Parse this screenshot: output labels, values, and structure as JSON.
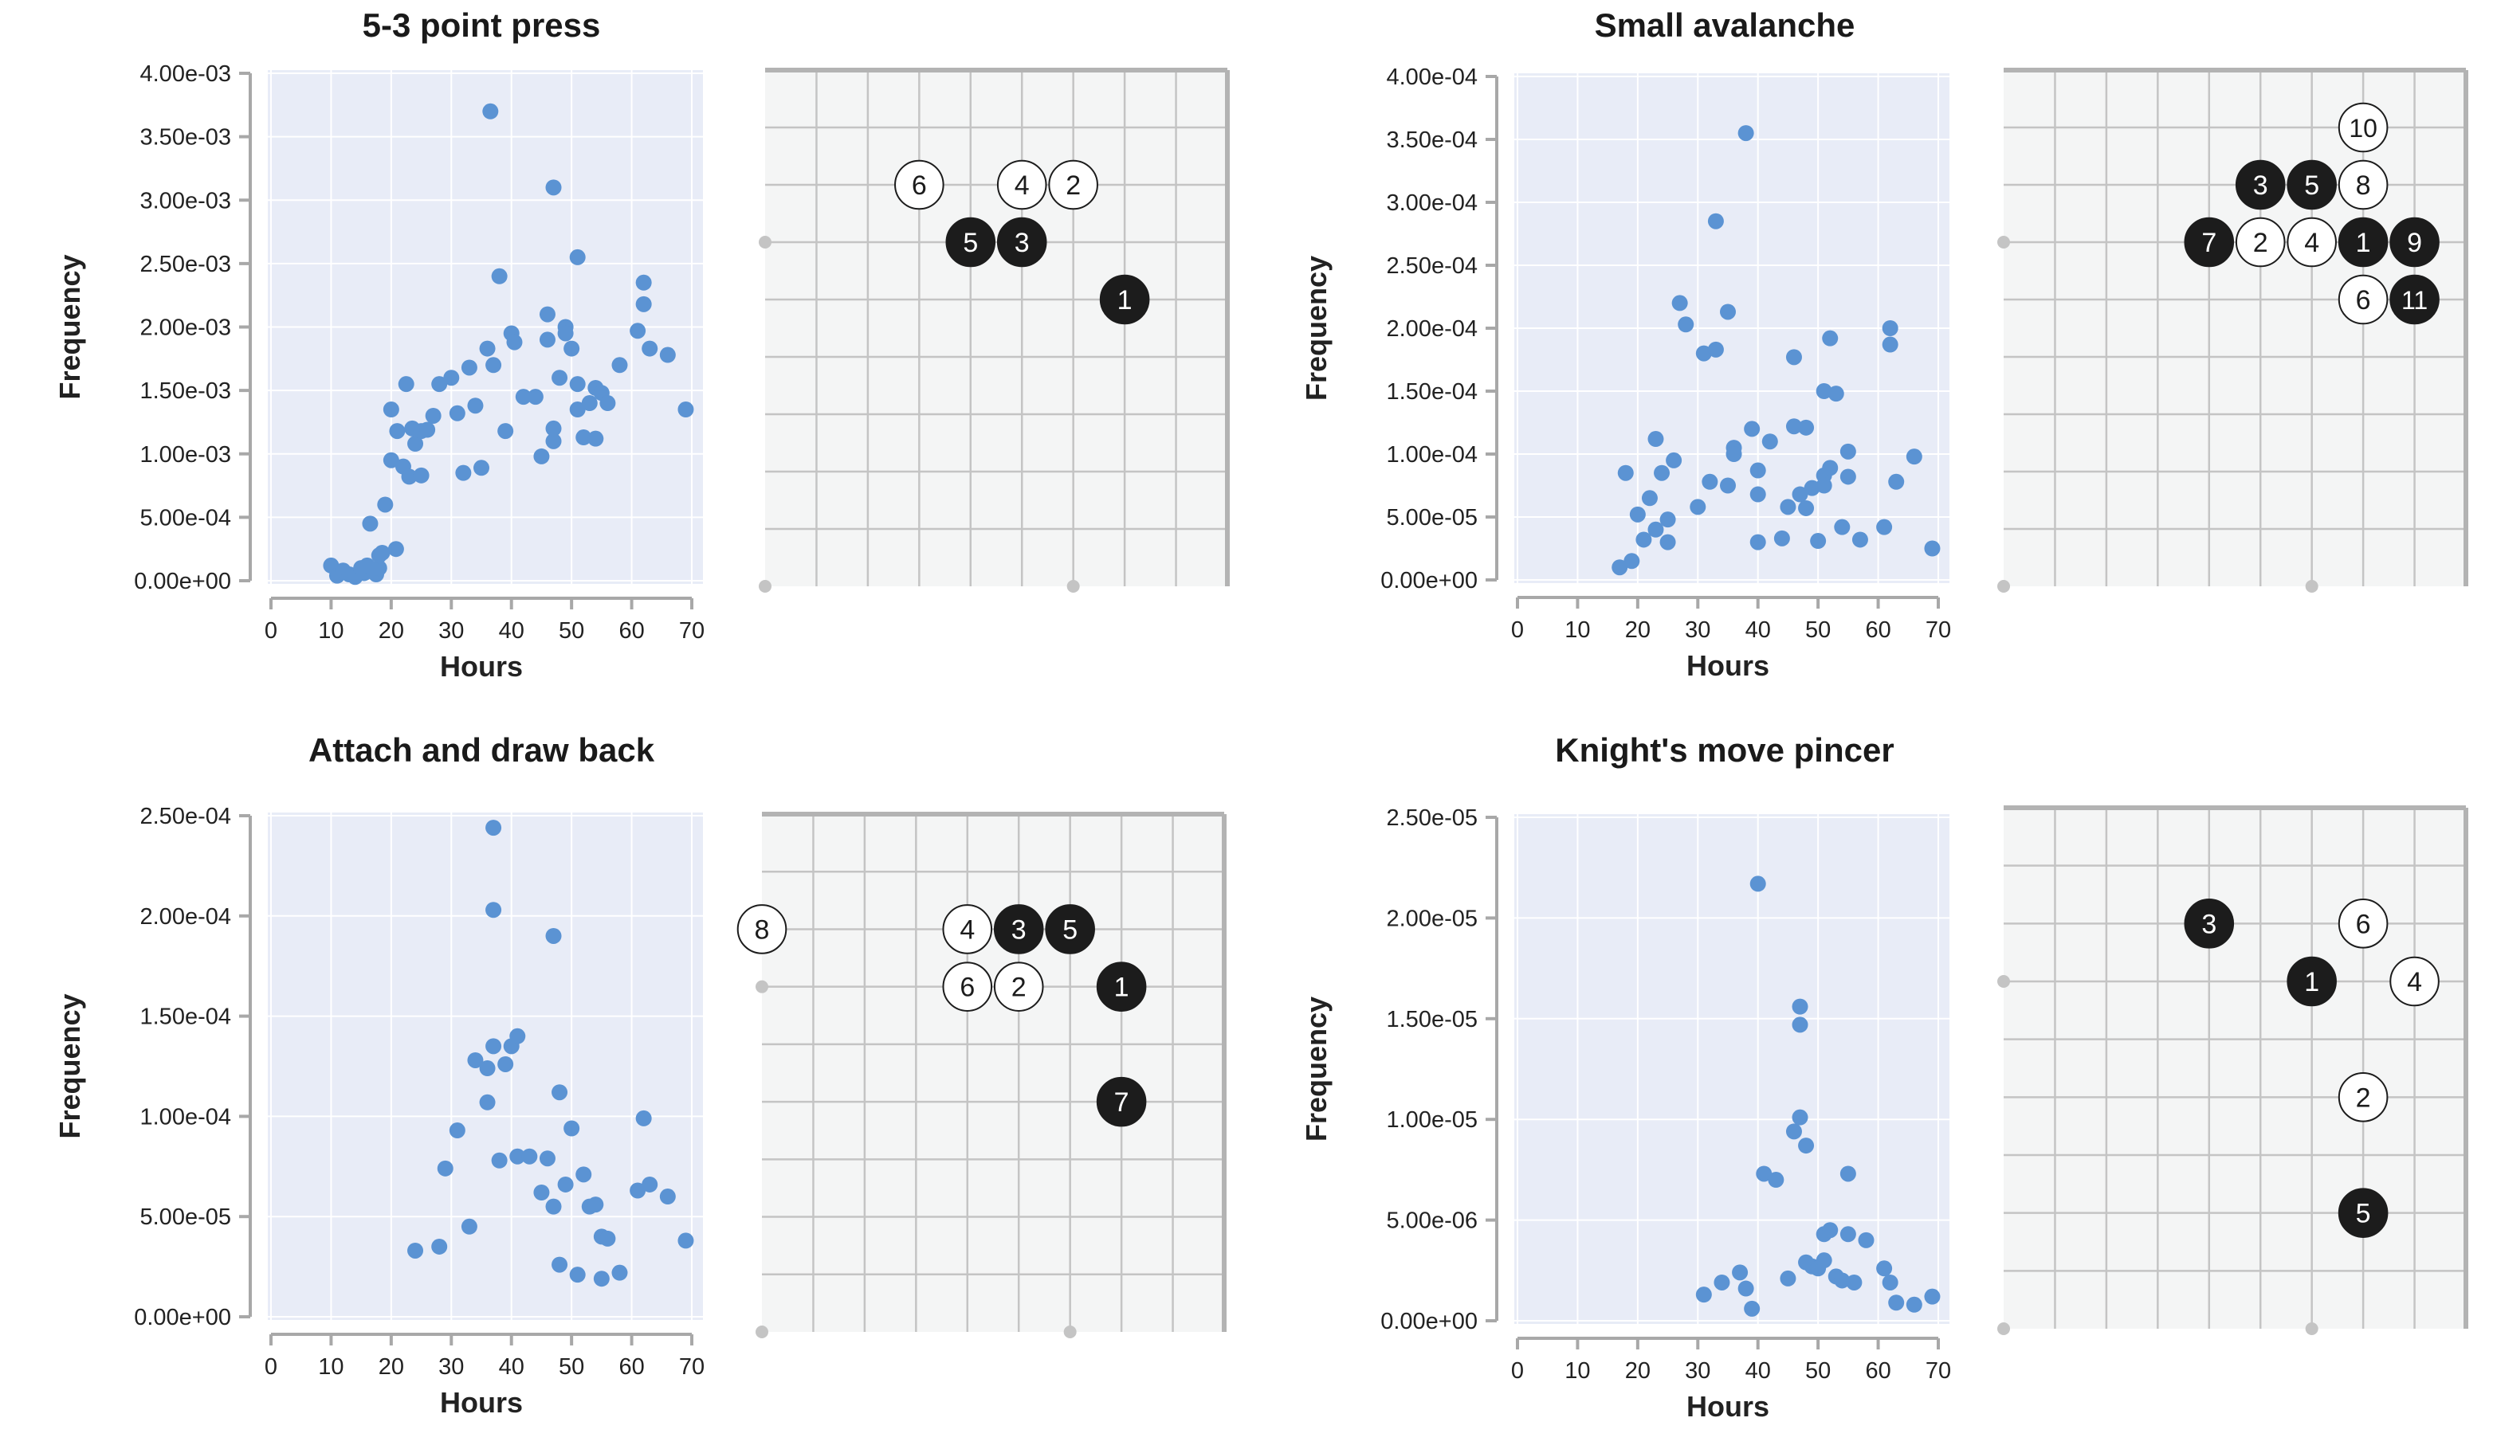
{
  "chart_data": [
    {
      "type": "scatter",
      "title": "5-3 point press",
      "xlabel": "Hours",
      "ylabel": "Frequency",
      "xlim": [
        0,
        70
      ],
      "ylim": [
        0,
        0.004
      ],
      "xticks": [
        "0",
        "10",
        "20",
        "30",
        "40",
        "50",
        "60",
        "70"
      ],
      "yticks": [
        "0.00e+00",
        "5.00e-04",
        "1.00e-03",
        "1.50e-03",
        "2.00e-03",
        "2.50e-03",
        "3.00e-03",
        "3.50e-03",
        "4.00e-03"
      ],
      "grid": true,
      "points": [
        [
          10,
          0.00012
        ],
        [
          11,
          4e-05
        ],
        [
          12,
          8e-05
        ],
        [
          13,
          5e-05
        ],
        [
          14,
          3e-05
        ],
        [
          15,
          0.0001
        ],
        [
          15.5,
          6e-05
        ],
        [
          16,
          0.00012
        ],
        [
          17,
          9e-05
        ],
        [
          17.5,
          5e-05
        ],
        [
          18,
          0.0001
        ],
        [
          18,
          0.0002
        ],
        [
          18.5,
          0.00022
        ],
        [
          16.5,
          0.00045
        ],
        [
          19,
          0.0006
        ],
        [
          20,
          0.00095
        ],
        [
          20,
          0.00135
        ],
        [
          20.8,
          0.00025
        ],
        [
          21,
          0.00118
        ],
        [
          22,
          0.0009
        ],
        [
          22.5,
          0.00155
        ],
        [
          23,
          0.00082
        ],
        [
          23.5,
          0.0012
        ],
        [
          24,
          0.00108
        ],
        [
          25,
          0.00083
        ],
        [
          25,
          0.00118
        ],
        [
          26,
          0.00119
        ],
        [
          27,
          0.0013
        ],
        [
          28,
          0.00155
        ],
        [
          30,
          0.0016
        ],
        [
          31,
          0.00132
        ],
        [
          32,
          0.00085
        ],
        [
          33,
          0.00168
        ],
        [
          34,
          0.00138
        ],
        [
          35,
          0.00089
        ],
        [
          36,
          0.00183
        ],
        [
          36.5,
          0.0037
        ],
        [
          37,
          0.0017
        ],
        [
          38,
          0.0024
        ],
        [
          39,
          0.00118
        ],
        [
          40,
          0.00195
        ],
        [
          40.5,
          0.00188
        ],
        [
          42,
          0.00145
        ],
        [
          44,
          0.00145
        ],
        [
          45,
          0.00098
        ],
        [
          46,
          0.0019
        ],
        [
          46,
          0.0021
        ],
        [
          47,
          0.0011
        ],
        [
          47,
          0.0031
        ],
        [
          47,
          0.0012
        ],
        [
          48,
          0.0016
        ],
        [
          49,
          0.002
        ],
        [
          49,
          0.00195
        ],
        [
          50,
          0.00183
        ],
        [
          51,
          0.00255
        ],
        [
          51,
          0.00155
        ],
        [
          51,
          0.00135
        ],
        [
          52,
          0.00113
        ],
        [
          53,
          0.0014
        ],
        [
          54,
          0.00152
        ],
        [
          54,
          0.00112
        ],
        [
          55,
          0.00148
        ],
        [
          56,
          0.0014
        ],
        [
          58,
          0.0017
        ],
        [
          61,
          0.00197
        ],
        [
          62,
          0.00218
        ],
        [
          62,
          0.00235
        ],
        [
          63,
          0.00183
        ],
        [
          66,
          0.00178
        ],
        [
          69,
          0.00135
        ]
      ]
    },
    {
      "type": "scatter",
      "title": "Small avalanche",
      "xlabel": "Hours",
      "ylabel": "Frequency",
      "xlim": [
        0,
        70
      ],
      "ylim": [
        0,
        0.0004
      ],
      "xticks": [
        "0",
        "10",
        "20",
        "30",
        "40",
        "50",
        "60",
        "70"
      ],
      "yticks": [
        "0.00e+00",
        "5.00e-05",
        "1.00e-04",
        "1.50e-04",
        "2.00e-04",
        "2.50e-04",
        "3.00e-04",
        "3.50e-04",
        "4.00e-04"
      ],
      "grid": true,
      "points": [
        [
          17,
          1e-05
        ],
        [
          18,
          8.5e-05
        ],
        [
          19,
          1.5e-05
        ],
        [
          20,
          5.2e-05
        ],
        [
          21,
          3.2e-05
        ],
        [
          22,
          6.5e-05
        ],
        [
          23,
          0.000112
        ],
        [
          23,
          4e-05
        ],
        [
          24,
          8.5e-05
        ],
        [
          25,
          4.8e-05
        ],
        [
          25,
          3e-05
        ],
        [
          26,
          9.5e-05
        ],
        [
          27,
          0.00022
        ],
        [
          28,
          0.000203
        ],
        [
          30,
          5.8e-05
        ],
        [
          31,
          0.00018
        ],
        [
          32,
          7.8e-05
        ],
        [
          33,
          0.000183
        ],
        [
          33,
          0.000285
        ],
        [
          35,
          0.000213
        ],
        [
          35,
          7.5e-05
        ],
        [
          36,
          0.000105
        ],
        [
          36,
          0.0001
        ],
        [
          38,
          0.000355
        ],
        [
          39,
          0.00012
        ],
        [
          40,
          3e-05
        ],
        [
          40,
          6.8e-05
        ],
        [
          40,
          8.7e-05
        ],
        [
          42,
          0.00011
        ],
        [
          44,
          3.3e-05
        ],
        [
          45,
          5.8e-05
        ],
        [
          46,
          0.000122
        ],
        [
          46,
          0.000177
        ],
        [
          47,
          6.8e-05
        ],
        [
          48,
          5.7e-05
        ],
        [
          48,
          0.000121
        ],
        [
          49,
          7.3e-05
        ],
        [
          50,
          3.1e-05
        ],
        [
          51,
          8.3e-05
        ],
        [
          51,
          0.00015
        ],
        [
          51,
          7.5e-05
        ],
        [
          52,
          0.000192
        ],
        [
          52,
          8.9e-05
        ],
        [
          53,
          0.000148
        ],
        [
          54,
          4.2e-05
        ],
        [
          55,
          0.000102
        ],
        [
          55,
          8.2e-05
        ],
        [
          57,
          3.2e-05
        ],
        [
          61,
          4.2e-05
        ],
        [
          62,
          0.0002
        ],
        [
          62,
          0.000187
        ],
        [
          63,
          7.8e-05
        ],
        [
          66,
          9.8e-05
        ],
        [
          69,
          2.5e-05
        ]
      ]
    },
    {
      "type": "scatter",
      "title": "Attach and draw back",
      "xlabel": "Hours",
      "ylabel": "Frequency",
      "xlim": [
        0,
        70
      ],
      "ylim": [
        0,
        0.00025
      ],
      "xticks": [
        "0",
        "10",
        "20",
        "30",
        "40",
        "50",
        "60",
        "70"
      ],
      "yticks": [
        "0.00e+00",
        "5.00e-05",
        "1.00e-04",
        "1.50e-04",
        "2.00e-04",
        "2.50e-04"
      ],
      "grid": true,
      "points": [
        [
          24,
          3.3e-05
        ],
        [
          28,
          3.5e-05
        ],
        [
          29,
          7.4e-05
        ],
        [
          31,
          9.3e-05
        ],
        [
          33,
          4.5e-05
        ],
        [
          34,
          0.000128
        ],
        [
          36,
          0.000107
        ],
        [
          36,
          0.000124
        ],
        [
          37,
          0.000203
        ],
        [
          37,
          0.000244
        ],
        [
          37,
          0.000135
        ],
        [
          38,
          7.8e-05
        ],
        [
          39,
          0.000126
        ],
        [
          40,
          0.000135
        ],
        [
          41,
          0.00014
        ],
        [
          41,
          8e-05
        ],
        [
          43,
          8e-05
        ],
        [
          45,
          6.2e-05
        ],
        [
          46,
          7.9e-05
        ],
        [
          47,
          5.5e-05
        ],
        [
          47,
          0.00019
        ],
        [
          48,
          0.000112
        ],
        [
          48,
          2.6e-05
        ],
        [
          49,
          6.6e-05
        ],
        [
          50,
          9.4e-05
        ],
        [
          51,
          2.1e-05
        ],
        [
          52,
          7.1e-05
        ],
        [
          53,
          5.5e-05
        ],
        [
          54,
          5.6e-05
        ],
        [
          55,
          4e-05
        ],
        [
          55,
          1.9e-05
        ],
        [
          56,
          3.9e-05
        ],
        [
          58,
          2.2e-05
        ],
        [
          61,
          6.3e-05
        ],
        [
          62,
          9.9e-05
        ],
        [
          63,
          6.6e-05
        ],
        [
          66,
          6e-05
        ],
        [
          69,
          3.8e-05
        ]
      ]
    },
    {
      "type": "scatter",
      "title": "Knight's move pincer",
      "xlabel": "Hours",
      "ylabel": "Frequency",
      "xlim": [
        0,
        70
      ],
      "ylim": [
        0,
        2.5e-05
      ],
      "xticks": [
        "0",
        "10",
        "20",
        "30",
        "40",
        "50",
        "60",
        "70"
      ],
      "yticks": [
        "0.00e+00",
        "5.00e-06",
        "1.00e-05",
        "1.50e-05",
        "2.00e-05",
        "2.50e-05"
      ],
      "grid": true,
      "points": [
        [
          31,
          1.3e-06
        ],
        [
          34,
          1.9e-06
        ],
        [
          37,
          2.4e-06
        ],
        [
          38,
          1.6e-06
        ],
        [
          39,
          6e-07
        ],
        [
          40,
          2.17e-05
        ],
        [
          41,
          7.3e-06
        ],
        [
          43,
          7e-06
        ],
        [
          45,
          2.1e-06
        ],
        [
          46,
          9.4e-06
        ],
        [
          47,
          1.01e-05
        ],
        [
          47,
          1.56e-05
        ],
        [
          47,
          1.47e-05
        ],
        [
          48,
          8.7e-06
        ],
        [
          48,
          2.9e-06
        ],
        [
          49,
          2.7e-06
        ],
        [
          50,
          2.6e-06
        ],
        [
          51,
          3e-06
        ],
        [
          51,
          4.3e-06
        ],
        [
          52,
          4.5e-06
        ],
        [
          53,
          2.2e-06
        ],
        [
          54,
          2e-06
        ],
        [
          55,
          7.3e-06
        ],
        [
          55,
          4.3e-06
        ],
        [
          56,
          1.9e-06
        ],
        [
          58,
          4e-06
        ],
        [
          61,
          2.6e-06
        ],
        [
          62,
          1.9e-06
        ],
        [
          63,
          9e-07
        ],
        [
          66,
          8e-07
        ],
        [
          69,
          1.2e-06
        ]
      ]
    }
  ],
  "boards": [
    {
      "stones": [
        {
          "label": "6",
          "color": "white",
          "col": 3,
          "row": 2
        },
        {
          "label": "4",
          "color": "white",
          "col": 5,
          "row": 2
        },
        {
          "label": "2",
          "color": "white",
          "col": 6,
          "row": 2
        },
        {
          "label": "5",
          "color": "black",
          "col": 4,
          "row": 3
        },
        {
          "label": "3",
          "color": "black",
          "col": 5,
          "row": 3
        },
        {
          "label": "1",
          "color": "black",
          "col": 7,
          "row": 4
        }
      ]
    },
    {
      "stones": [
        {
          "label": "10",
          "color": "white",
          "col": 7,
          "row": 1
        },
        {
          "label": "3",
          "color": "black",
          "col": 5,
          "row": 2
        },
        {
          "label": "5",
          "color": "black",
          "col": 6,
          "row": 2
        },
        {
          "label": "8",
          "color": "white",
          "col": 7,
          "row": 2
        },
        {
          "label": "7",
          "color": "black",
          "col": 4,
          "row": 3
        },
        {
          "label": "2",
          "color": "white",
          "col": 5,
          "row": 3
        },
        {
          "label": "4",
          "color": "white",
          "col": 6,
          "row": 3
        },
        {
          "label": "1",
          "color": "black",
          "col": 7,
          "row": 3
        },
        {
          "label": "9",
          "color": "black",
          "col": 8,
          "row": 3
        },
        {
          "label": "6",
          "color": "white",
          "col": 7,
          "row": 4
        },
        {
          "label": "11",
          "color": "black",
          "col": 8,
          "row": 4
        }
      ]
    },
    {
      "stones": [
        {
          "label": "8",
          "color": "white",
          "col": 0,
          "row": 2
        },
        {
          "label": "4",
          "color": "white",
          "col": 4,
          "row": 2
        },
        {
          "label": "3",
          "color": "black",
          "col": 5,
          "row": 2
        },
        {
          "label": "5",
          "color": "black",
          "col": 6,
          "row": 2
        },
        {
          "label": "6",
          "color": "white",
          "col": 4,
          "row": 3
        },
        {
          "label": "2",
          "color": "white",
          "col": 5,
          "row": 3
        },
        {
          "label": "1",
          "color": "black",
          "col": 7,
          "row": 3
        },
        {
          "label": "7",
          "color": "black",
          "col": 7,
          "row": 5
        }
      ]
    },
    {
      "stones": [
        {
          "label": "3",
          "color": "black",
          "col": 4,
          "row": 2
        },
        {
          "label": "6",
          "color": "white",
          "col": 7,
          "row": 2
        },
        {
          "label": "1",
          "color": "black",
          "col": 6,
          "row": 3
        },
        {
          "label": "4",
          "color": "white",
          "col": 8,
          "row": 3
        },
        {
          "label": "2",
          "color": "white",
          "col": 7,
          "row": 5
        },
        {
          "label": "5",
          "color": "black",
          "col": 7,
          "row": 7
        }
      ]
    }
  ],
  "colors": {
    "point": "#5b93d3",
    "plot_bg": "#e8ecf7",
    "grid": "#ffffff",
    "axis": "#a8a8a8",
    "board_bg": "#f4f5f5",
    "board_line": "#c4c4c4",
    "board_border": "#b3b3b3",
    "black_stone": "#1c1c1c",
    "white_stone": "#ffffff"
  }
}
